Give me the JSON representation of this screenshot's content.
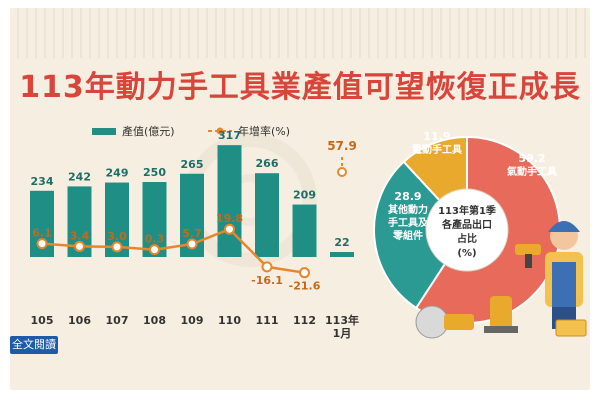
{
  "title": "113年動力手工具業產值可望恢復正成長",
  "legend": {
    "bar_label": "產值(億元)",
    "line_label": "年增率(%)"
  },
  "colors": {
    "bar": "#1f8f86",
    "line": "#e8862c",
    "title": "#d8453b",
    "pie_red": "#e86a5a",
    "pie_teal": "#2a9a93",
    "pie_yellow": "#e8a92c"
  },
  "pie_center": {
    "line1": "113年第1季",
    "line2": "各產品出口",
    "line3": "占比",
    "line4": "(%)"
  },
  "read_more": "全文閱讀",
  "chart_data": [
    {
      "type": "bar",
      "categories": [
        "105",
        "106",
        "107",
        "108",
        "109",
        "110",
        "111",
        "112",
        "113年 1月"
      ],
      "series": [
        {
          "name": "產值(億元)",
          "type": "bar",
          "values": [
            234,
            242,
            249,
            250,
            265,
            317,
            266,
            209,
            22
          ]
        },
        {
          "name": "年增率(%)",
          "type": "line",
          "values": [
            6.1,
            3.4,
            3.0,
            0.3,
            5.7,
            19.8,
            -16.1,
            -21.6,
            57.9
          ]
        }
      ],
      "value_labels": [
        "234",
        "242",
        "249",
        "250",
        "265",
        "317",
        "266",
        "209",
        "22"
      ],
      "rate_labels": [
        "6.1",
        "3.4",
        "3.0",
        "0.3",
        "5.7",
        "19.8",
        "-16.1",
        "-21.6",
        "57.9"
      ],
      "xlabel": "",
      "ylabel": "",
      "grid": false,
      "legend_position": "top"
    },
    {
      "type": "pie",
      "labels": [
        "氣動手工具",
        "其他動力手工具及零組件",
        "電動手工具"
      ],
      "label_text": [
        [
          "59.2",
          "氣動手工具"
        ],
        [
          "28.9",
          "其他動力",
          "手工具及",
          "零組件"
        ],
        [
          "11.9",
          "電動手工具"
        ]
      ],
      "values": [
        59.2,
        28.9,
        11.9
      ],
      "title": "113年第1季各產品出口占比(%)"
    }
  ]
}
